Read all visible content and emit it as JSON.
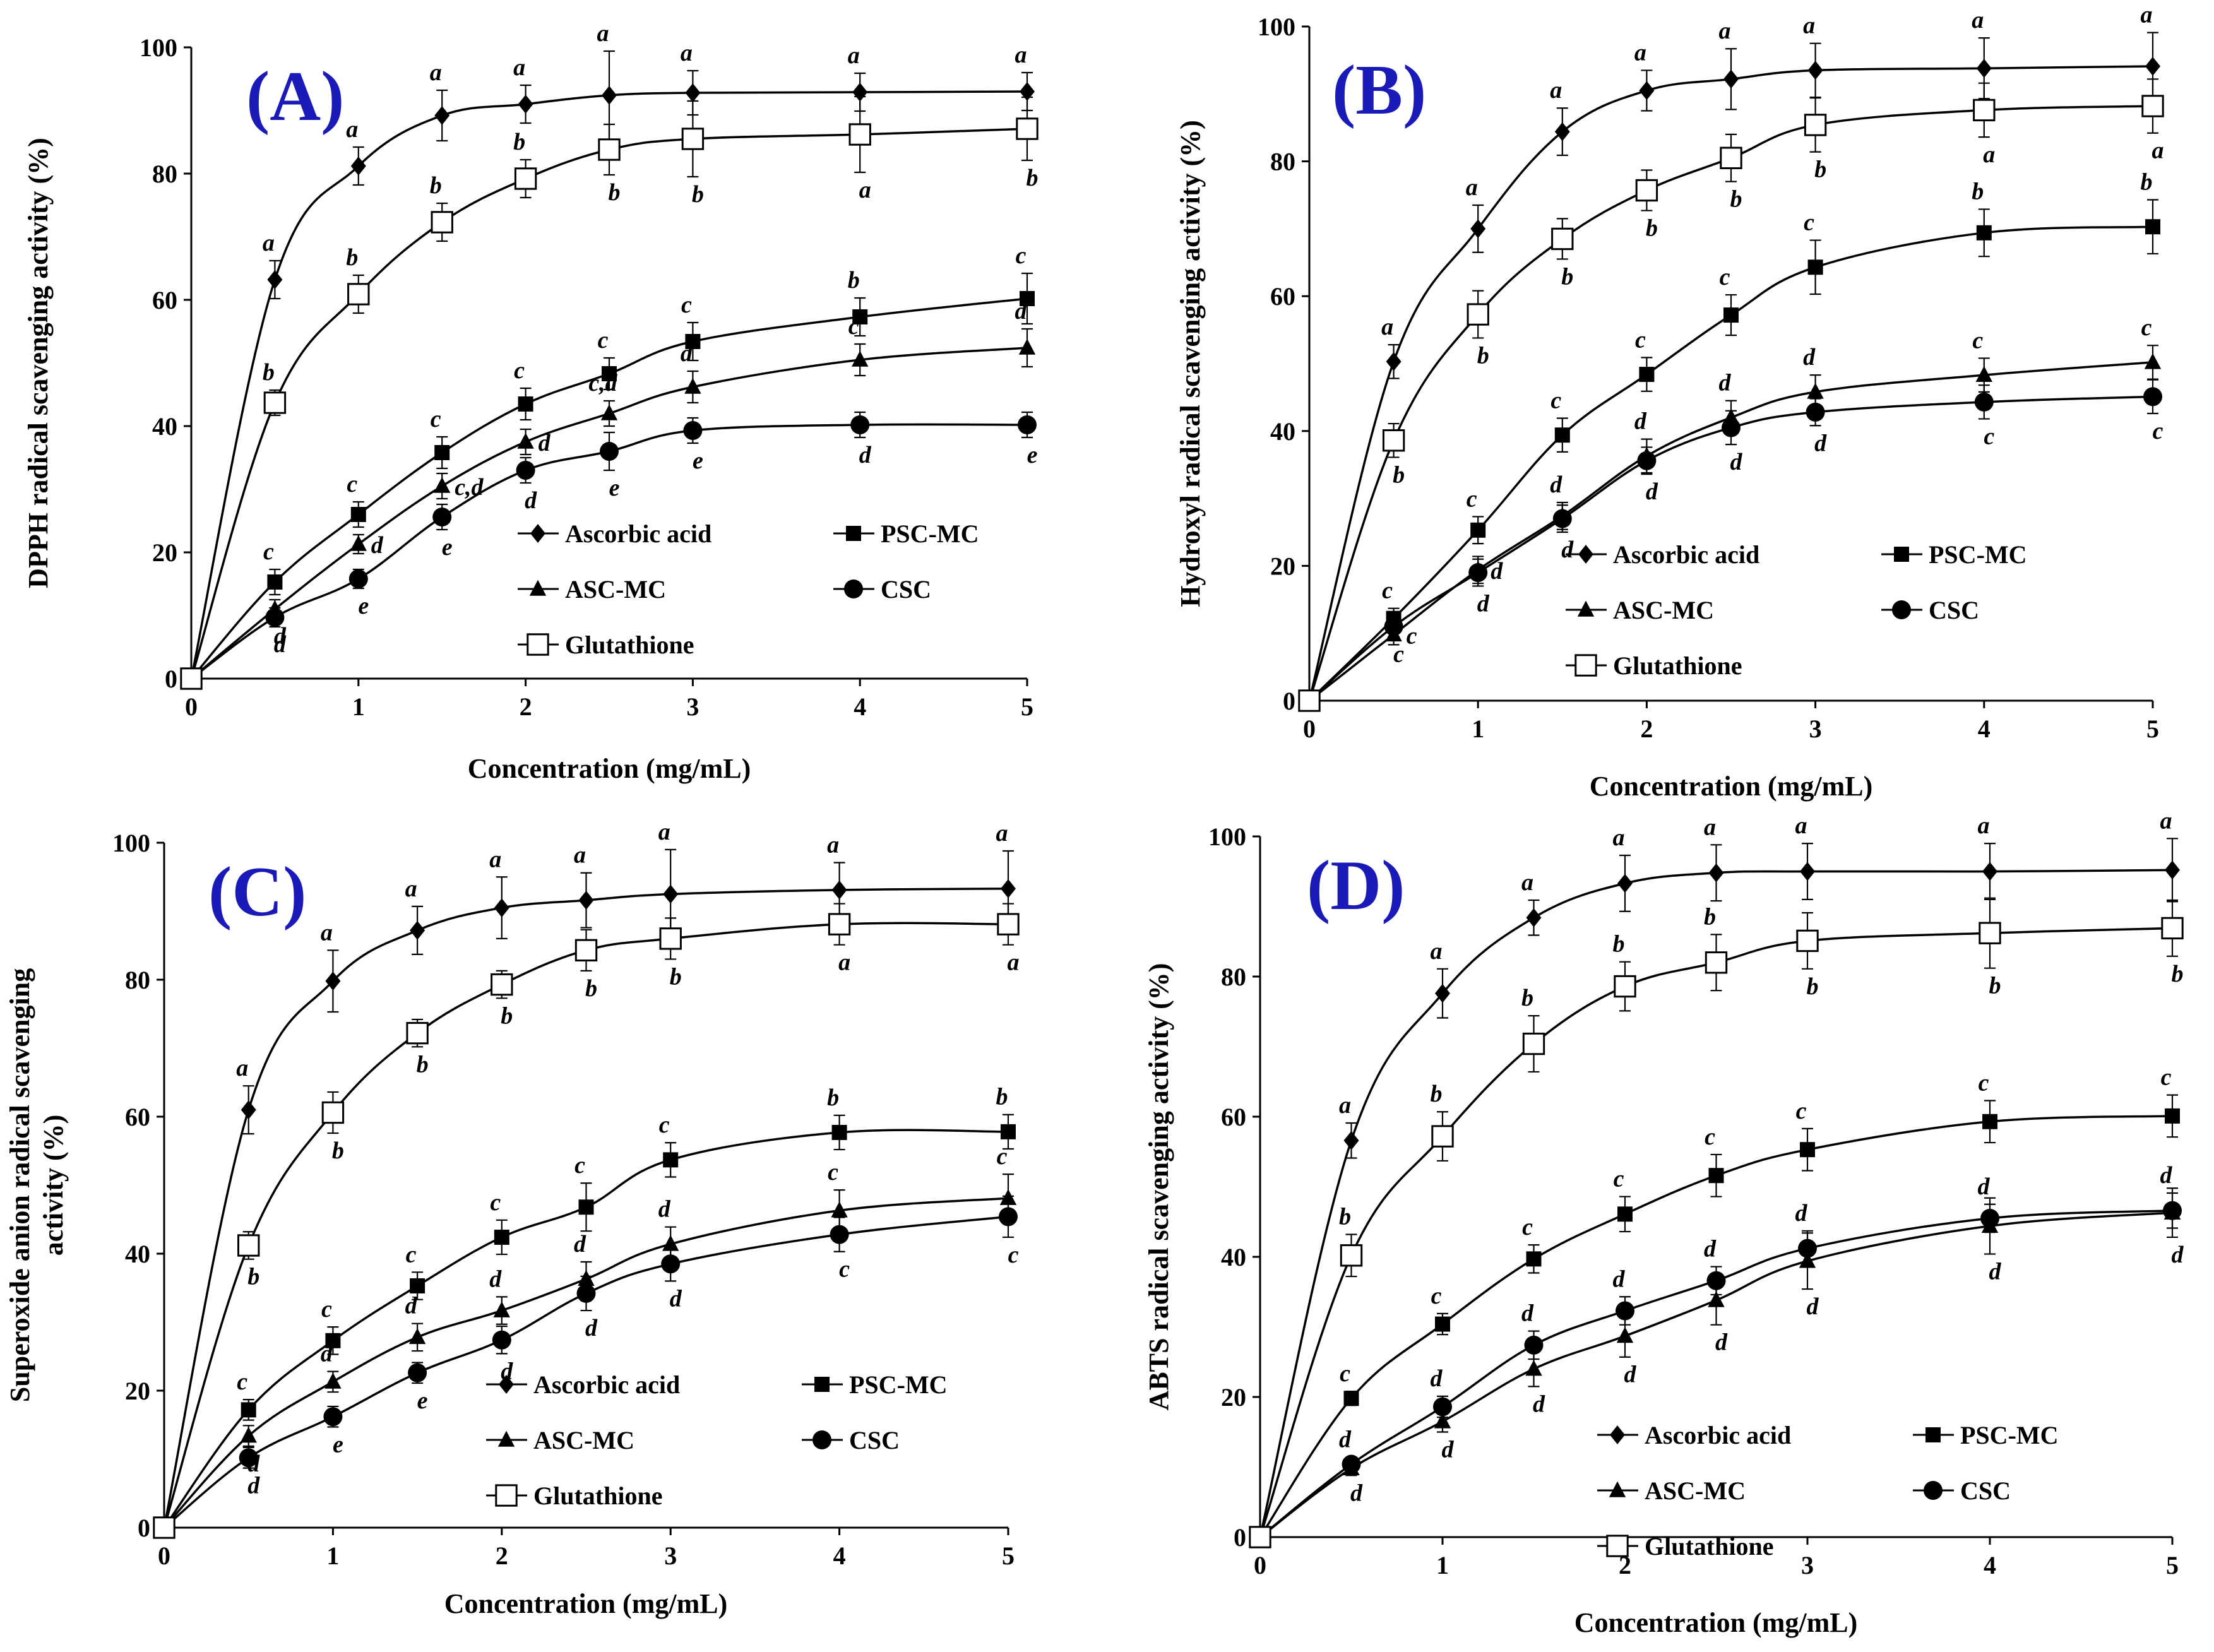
{
  "chart_data": [
    {
      "type": "line",
      "panel": "(A)",
      "xlabel": "Concentration (mg/mL)",
      "ylabel": "DPPH radical scavenging activity (%)",
      "x": [
        0,
        0.5,
        1,
        1.5,
        2,
        2.5,
        3,
        4,
        5
      ],
      "xticks": [
        0,
        1,
        2,
        3,
        4,
        5
      ],
      "yticks": [
        0,
        20,
        40,
        60,
        80,
        100
      ],
      "xlim": [
        0,
        5
      ],
      "ylim": [
        0,
        100
      ],
      "series": [
        {
          "name": "Ascorbic acid",
          "marker": "diamond",
          "values": [
            0,
            63.2,
            81.2,
            89.2,
            91.0,
            92.4,
            92.8,
            92.9,
            93.0
          ],
          "errors": [
            0,
            3,
            3,
            4,
            3,
            7,
            3.5,
            3,
            3
          ],
          "letters": [
            "",
            "a",
            "a",
            "a",
            "a",
            "a",
            "a",
            "a",
            "a"
          ],
          "letter_pos": [
            "",
            "above",
            "above",
            "above",
            "above",
            "above",
            "above",
            "above",
            "above"
          ]
        },
        {
          "name": "PSC-MC",
          "marker": "square",
          "values": [
            0,
            15.3,
            26.0,
            35.8,
            43.5,
            48.3,
            53.4,
            57.3,
            60.2
          ],
          "errors": [
            0,
            2,
            2,
            2.5,
            2.5,
            2.5,
            3,
            3,
            4
          ],
          "letters": [
            "",
            "c",
            "c",
            "c",
            "c",
            "c",
            "c",
            "b",
            "c"
          ],
          "letter_pos": [
            "",
            "above",
            "above",
            "above",
            "above",
            "above",
            "above",
            "above",
            "above"
          ]
        },
        {
          "name": "ASC-MC",
          "marker": "triangle",
          "values": [
            0,
            11.0,
            21.3,
            30.5,
            37.5,
            42.0,
            46.2,
            50.5,
            52.4
          ],
          "errors": [
            0,
            1.5,
            1.5,
            2,
            2,
            2,
            2.5,
            2.5,
            3
          ],
          "letters": [
            "",
            "d",
            "d",
            "c,d",
            "d",
            "c,d",
            "d",
            "c",
            "d"
          ],
          "letter_pos": [
            "",
            "below",
            "right",
            "right",
            "right",
            "above",
            "above",
            "above",
            "above"
          ]
        },
        {
          "name": "CSC",
          "marker": "circle",
          "values": [
            0,
            9.7,
            15.8,
            25.6,
            33.0,
            36.0,
            39.3,
            40.2,
            40.2
          ],
          "errors": [
            0,
            1.5,
            1.5,
            2,
            2,
            3,
            2,
            2,
            2
          ],
          "letters": [
            "",
            "d",
            "e",
            "e",
            "d",
            "e",
            "e",
            "d",
            "e"
          ],
          "letter_pos": [
            "",
            "below",
            "below",
            "below",
            "below",
            "below",
            "below",
            "below",
            "below"
          ]
        },
        {
          "name": "Glutathione",
          "marker": "open-square",
          "values": [
            0,
            43.7,
            60.9,
            72.3,
            79.2,
            83.8,
            85.5,
            86.2,
            87.1
          ],
          "errors": [
            0,
            2,
            3,
            3,
            3,
            4,
            6,
            6,
            5
          ],
          "letters": [
            "",
            "b",
            "b",
            "b",
            "b",
            "b",
            "b",
            "a",
            "b"
          ],
          "letter_pos": [
            "",
            "above",
            "above",
            "above",
            "above",
            "below",
            "below",
            "below",
            "below"
          ]
        }
      ]
    },
    {
      "type": "line",
      "panel": "(B)",
      "xlabel": "Concentration (mg/mL)",
      "ylabel": "Hydroxyl radical scavenging activity (%)",
      "x": [
        0,
        0.5,
        1,
        1.5,
        2,
        2.5,
        3,
        4,
        5
      ],
      "xticks": [
        0,
        1,
        2,
        3,
        4,
        5
      ],
      "yticks": [
        0,
        20,
        40,
        60,
        80,
        100
      ],
      "xlim": [
        0,
        5
      ],
      "ylim": [
        0,
        100
      ],
      "series": [
        {
          "name": "Ascorbic acid",
          "marker": "diamond",
          "values": [
            0,
            50.3,
            70.0,
            84.4,
            90.5,
            92.2,
            93.5,
            93.8,
            94.1
          ],
          "errors": [
            0,
            2.5,
            3.5,
            3.5,
            3,
            4.5,
            4,
            4.5,
            5
          ],
          "letters": [
            "",
            "a",
            "a",
            "a",
            "a",
            "a",
            "a",
            "a",
            "a"
          ],
          "letter_pos": [
            "",
            "above",
            "above",
            "above",
            "above",
            "above",
            "above",
            "above",
            "above"
          ]
        },
        {
          "name": "PSC-MC",
          "marker": "square",
          "values": [
            0,
            12.2,
            25.3,
            39.4,
            48.4,
            57.2,
            64.3,
            69.4,
            70.3
          ],
          "errors": [
            0,
            1.5,
            2,
            2.5,
            2.5,
            3,
            4,
            3.5,
            4
          ],
          "letters": [
            "",
            "c",
            "c",
            "c",
            "c",
            "c",
            "c",
            "b",
            "b"
          ],
          "letter_pos": [
            "",
            "above",
            "above",
            "above",
            "above",
            "above",
            "above",
            "above",
            "above"
          ]
        },
        {
          "name": "ASC-MC",
          "marker": "triangle",
          "values": [
            0,
            9.8,
            19.4,
            27.4,
            36.3,
            42.0,
            45.8,
            48.3,
            50.2
          ],
          "errors": [
            0,
            1.5,
            2,
            2,
            2.5,
            2.5,
            2.5,
            2.5,
            2.5
          ],
          "letters": [
            "",
            "c",
            "d",
            "d",
            "d",
            "d",
            "d",
            "c",
            "c"
          ],
          "letter_pos": [
            "",
            "right",
            "right",
            "above",
            "above",
            "above",
            "above",
            "above",
            "above"
          ]
        },
        {
          "name": "CSC",
          "marker": "circle",
          "values": [
            0,
            11.0,
            19.0,
            27.0,
            35.6,
            40.5,
            42.8,
            44.3,
            45.1
          ],
          "errors": [
            0,
            1.5,
            2,
            2,
            2,
            2.5,
            2,
            2.5,
            2.5
          ],
          "letters": [
            "",
            "c",
            "d",
            "d",
            "d",
            "d",
            "d",
            "c",
            "c"
          ],
          "letter_pos": [
            "",
            "below",
            "below",
            "below",
            "below",
            "below",
            "below",
            "below",
            "below"
          ]
        },
        {
          "name": "Glutathione",
          "marker": "open-square",
          "values": [
            0,
            38.6,
            57.3,
            68.5,
            75.7,
            80.5,
            85.4,
            87.6,
            88.2
          ],
          "errors": [
            0,
            2.5,
            3.5,
            3,
            3,
            3.5,
            4,
            4,
            4
          ],
          "letters": [
            "",
            "b",
            "b",
            "b",
            "b",
            "b",
            "b",
            "a",
            "a"
          ],
          "letter_pos": [
            "",
            "below",
            "below",
            "below",
            "below",
            "below",
            "below",
            "below",
            "below"
          ]
        }
      ]
    },
    {
      "type": "line",
      "panel": "(C)",
      "xlabel": "Concentration (mg/mL)",
      "ylabel": "Superoxide  anion radical scavenging activity (%)",
      "x": [
        0,
        0.5,
        1,
        1.5,
        2,
        2.5,
        3,
        4,
        5
      ],
      "xticks": [
        0,
        1,
        2,
        3,
        4,
        5
      ],
      "yticks": [
        0,
        20,
        40,
        60,
        80,
        100
      ],
      "xlim": [
        0,
        5
      ],
      "ylim": [
        0,
        100
      ],
      "series": [
        {
          "name": "Ascorbic acid",
          "marker": "diamond",
          "values": [
            0,
            61.0,
            79.8,
            87.2,
            90.5,
            91.6,
            92.5,
            93.1,
            93.3
          ],
          "errors": [
            0,
            3.5,
            4.5,
            3.5,
            4.5,
            4,
            6.5,
            4,
            5.5
          ],
          "letters": [
            "",
            "a",
            "a",
            "a",
            "a",
            "a",
            "a",
            "a",
            "a"
          ],
          "letter_pos": [
            "",
            "above",
            "above",
            "above",
            "above",
            "above",
            "above",
            "above",
            "above"
          ]
        },
        {
          "name": "PSC-MC",
          "marker": "square",
          "values": [
            0,
            17.2,
            27.3,
            35.3,
            42.4,
            46.8,
            53.7,
            57.7,
            57.8
          ],
          "errors": [
            0,
            1.5,
            2,
            2,
            2.5,
            3.5,
            2.5,
            2.5,
            2.5
          ],
          "letters": [
            "",
            "c",
            "c",
            "c",
            "c",
            "c",
            "c",
            "b",
            "b"
          ],
          "letter_pos": [
            "",
            "above",
            "above",
            "above",
            "above",
            "above",
            "above",
            "above",
            "above"
          ]
        },
        {
          "name": "ASC-MC",
          "marker": "triangle",
          "values": [
            0,
            13.4,
            21.3,
            27.8,
            31.7,
            36.3,
            41.4,
            46.3,
            48.1
          ],
          "errors": [
            0,
            1.5,
            1.5,
            2,
            2,
            2.5,
            2.5,
            3,
            3.5
          ],
          "letters": [
            "",
            "d",
            "d",
            "d",
            "d",
            "d",
            "d",
            "c",
            "c"
          ],
          "letter_pos": [
            "",
            "below",
            "above",
            "above",
            "above",
            "above",
            "above",
            "above",
            "above"
          ]
        },
        {
          "name": "CSC",
          "marker": "circle",
          "values": [
            0,
            10.2,
            16.2,
            22.6,
            27.4,
            34.2,
            38.5,
            42.8,
            45.4
          ],
          "errors": [
            0,
            1.5,
            1.5,
            1.5,
            2,
            2.5,
            2.5,
            2.5,
            3
          ],
          "letters": [
            "",
            "d",
            "e",
            "e",
            "d",
            "d",
            "d",
            "c",
            "c"
          ],
          "letter_pos": [
            "",
            "below",
            "below",
            "below",
            "below",
            "below",
            "below",
            "below",
            "below"
          ]
        },
        {
          "name": "Glutathione",
          "marker": "open-square",
          "values": [
            0,
            41.2,
            60.6,
            72.2,
            79.3,
            84.3,
            86.0,
            88.1,
            88.1
          ],
          "errors": [
            0,
            2,
            3,
            2,
            2,
            3,
            3,
            3,
            3
          ],
          "letters": [
            "",
            "b",
            "b",
            "b",
            "b",
            "b",
            "b",
            "a",
            "a"
          ],
          "letter_pos": [
            "",
            "below",
            "below",
            "below",
            "below",
            "below",
            "below",
            "below",
            "below"
          ]
        }
      ]
    },
    {
      "type": "line",
      "panel": "(D)",
      "xlabel": "Concentration (mg/mL)",
      "ylabel": "ABTS radical scavenging activity (%)",
      "x": [
        0,
        0.5,
        1,
        1.5,
        2,
        2.5,
        3,
        4,
        5
      ],
      "xticks": [
        0,
        1,
        2,
        3,
        4,
        5
      ],
      "yticks": [
        0,
        20,
        40,
        60,
        80,
        100
      ],
      "xlim": [
        0,
        5
      ],
      "ylim": [
        0,
        100
      ],
      "series": [
        {
          "name": "Ascorbic acid",
          "marker": "diamond",
          "values": [
            0,
            56.6,
            77.6,
            88.4,
            93.3,
            94.8,
            95.0,
            95.0,
            95.2
          ],
          "errors": [
            0,
            2.5,
            3.5,
            2.5,
            4,
            4,
            4,
            4,
            4.5
          ],
          "letters": [
            "",
            "a",
            "a",
            "a",
            "a",
            "a",
            "a",
            "a",
            "a"
          ],
          "letter_pos": [
            "",
            "above",
            "above",
            "above",
            "above",
            "above",
            "above",
            "above",
            "above"
          ]
        },
        {
          "name": "PSC-MC",
          "marker": "square",
          "values": [
            0,
            19.8,
            30.4,
            39.7,
            46.1,
            51.6,
            55.3,
            59.3,
            60.1
          ],
          "errors": [
            0,
            1,
            1.5,
            2,
            2.5,
            3,
            3,
            3,
            3
          ],
          "letters": [
            "",
            "c",
            "c",
            "c",
            "c",
            "c",
            "c",
            "c",
            "c"
          ],
          "letter_pos": [
            "",
            "above",
            "above",
            "above",
            "above",
            "above",
            "above",
            "above",
            "above"
          ]
        },
        {
          "name": "ASC-MC",
          "marker": "triangle",
          "values": [
            0,
            9.8,
            16.5,
            24.0,
            28.7,
            33.8,
            39.4,
            44.4,
            46.3
          ],
          "errors": [
            0,
            1,
            1.5,
            2.5,
            3,
            3.5,
            4,
            4,
            3.5
          ],
          "letters": [
            "",
            "d",
            "d",
            "d",
            "d",
            "d",
            "d",
            "d",
            "d"
          ],
          "letter_pos": [
            "",
            "below",
            "below",
            "below",
            "below",
            "below",
            "below",
            "below",
            "below"
          ]
        },
        {
          "name": "CSC",
          "marker": "circle",
          "values": [
            0,
            10.4,
            18.6,
            27.4,
            32.3,
            36.6,
            41.2,
            45.5,
            46.6
          ],
          "errors": [
            0,
            1,
            1.5,
            2,
            2,
            2,
            2.5,
            2,
            2.5
          ],
          "letters": [
            "",
            "d",
            "d",
            "d",
            "d",
            "d",
            "d",
            "d",
            "d"
          ],
          "letter_pos": [
            "",
            "above",
            "above",
            "above",
            "above",
            "above",
            "above",
            "above",
            "above"
          ]
        },
        {
          "name": "Glutathione",
          "marker": "open-square",
          "values": [
            0,
            40.2,
            57.2,
            70.4,
            78.6,
            82.0,
            85.1,
            86.2,
            86.9
          ],
          "errors": [
            0,
            3,
            3.5,
            4,
            3.5,
            4,
            4,
            5,
            4
          ],
          "letters": [
            "",
            "b",
            "b",
            "b",
            "b",
            "b",
            "b",
            "b",
            "b"
          ],
          "letter_pos": [
            "",
            "above",
            "above",
            "above",
            "above",
            "above",
            "below",
            "below",
            "below"
          ]
        }
      ]
    }
  ],
  "colors": {
    "panel_label": "#1a1ab8",
    "ink": "#000000",
    "background": "#ffffff"
  }
}
